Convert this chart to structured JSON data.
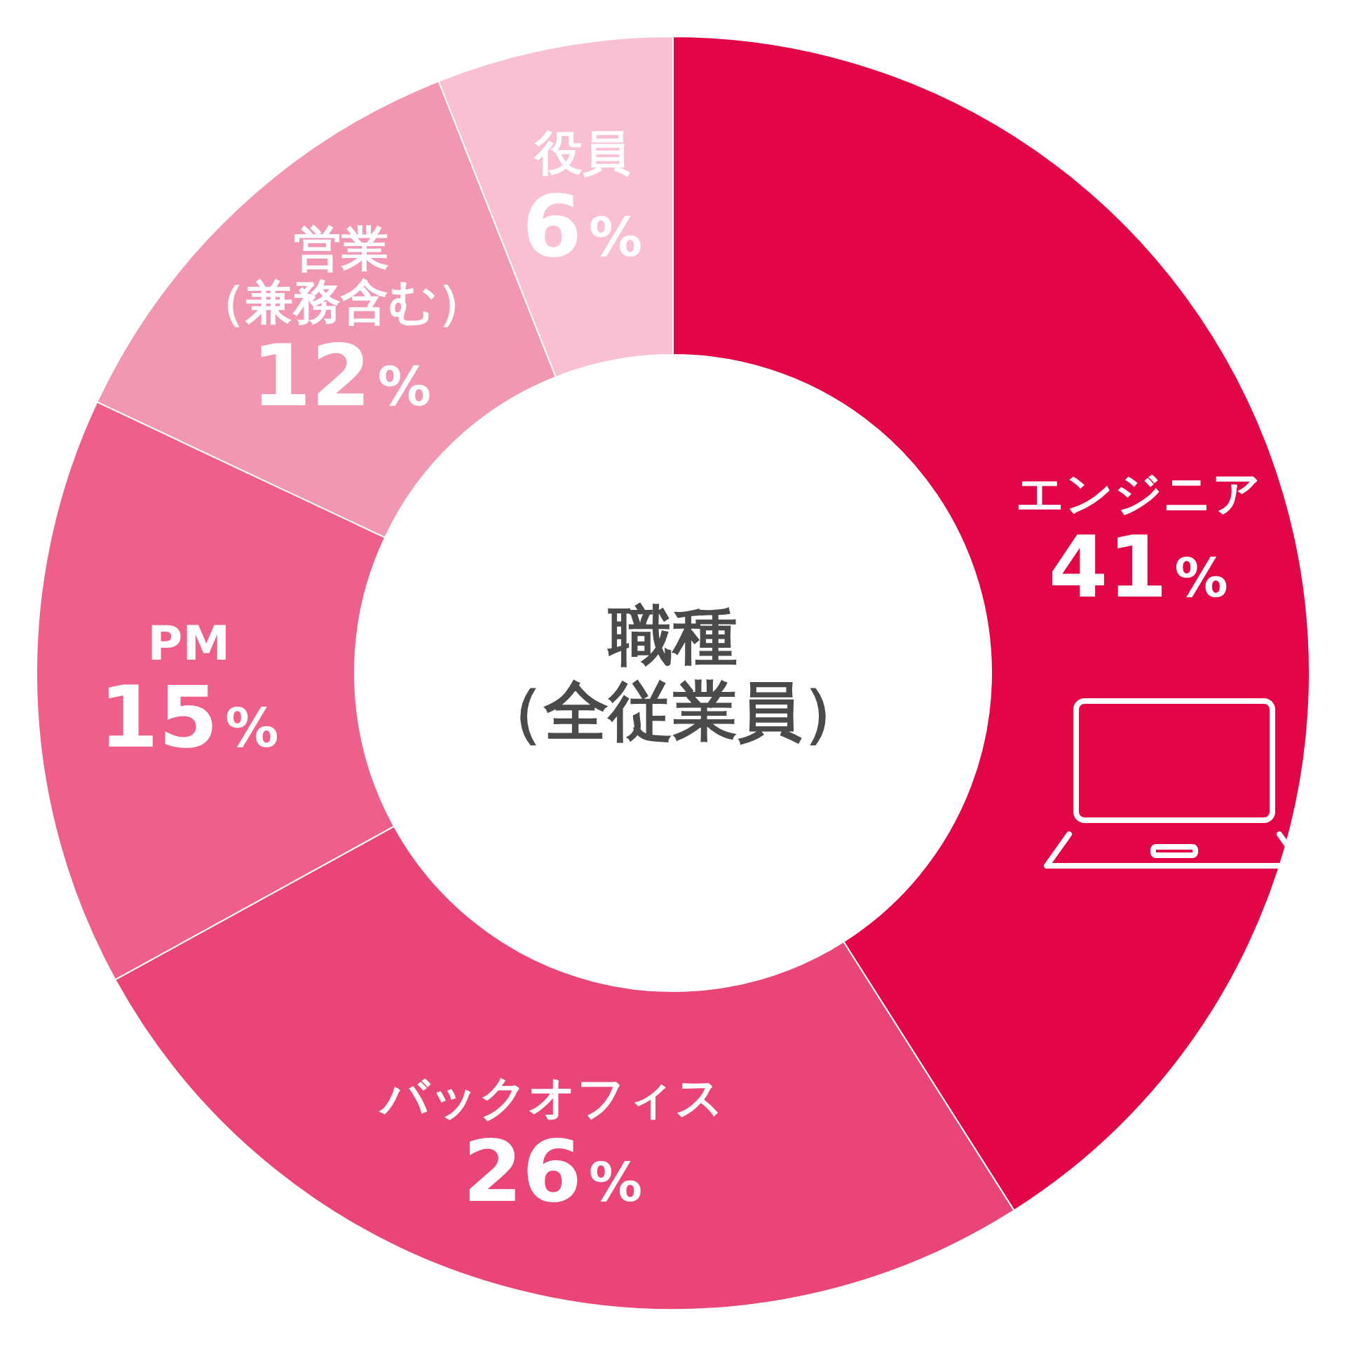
{
  "chart_data": {
    "type": "donut",
    "title": "職種（全従業員）",
    "categories": [
      "エンジニア",
      "バックオフィス",
      "PM",
      "営業（兼務含む）",
      "役員"
    ],
    "values": [
      41,
      26,
      15,
      12,
      6
    ],
    "colors": [
      "#e30647",
      "#ea4577",
      "#ee5f89",
      "#f297b2",
      "#f9c0d1"
    ],
    "value_labels": [
      "41%",
      "26%",
      "15%",
      "12%",
      "6%"
    ]
  }
}
